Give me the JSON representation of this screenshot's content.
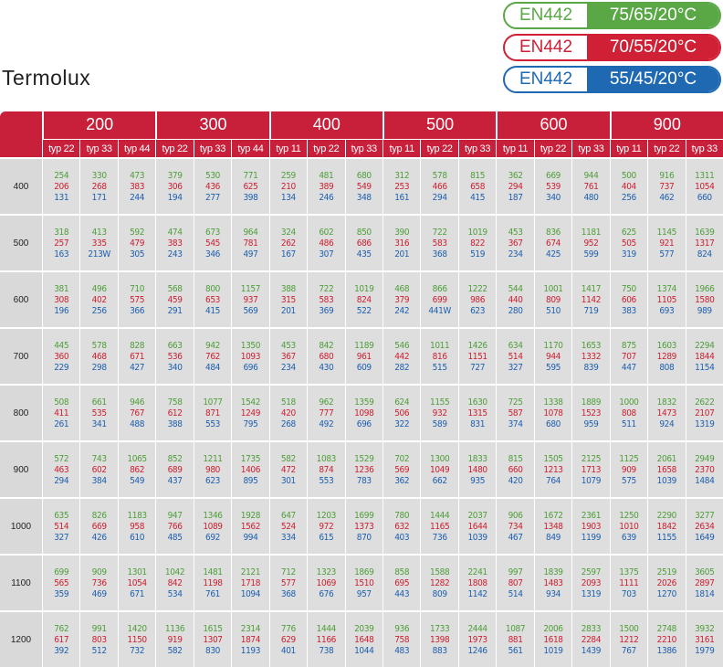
{
  "header": {
    "title": "Termolux"
  },
  "legend": [
    {
      "standard": "EN442",
      "temps": "75/65/20°C"
    },
    {
      "standard": "EN442",
      "temps": "70/55/20°C"
    },
    {
      "standard": "EN442",
      "temps": "55/45/20°C"
    }
  ],
  "table": {
    "groups": [
      {
        "label": "200",
        "types": [
          "typ 22",
          "typ 33",
          "typ 44"
        ]
      },
      {
        "label": "300",
        "types": [
          "typ 22",
          "typ 33",
          "typ 44"
        ]
      },
      {
        "label": "400",
        "types": [
          "typ 11",
          "typ 22",
          "typ 33"
        ]
      },
      {
        "label": "500",
        "types": [
          "typ 11",
          "typ 22",
          "typ 33"
        ]
      },
      {
        "label": "600",
        "types": [
          "typ 11",
          "typ 22",
          "typ 33"
        ]
      },
      {
        "label": "900",
        "types": [
          "typ 11",
          "typ 22",
          "typ 33"
        ]
      }
    ],
    "rows": [
      {
        "height": "400",
        "cells": [
          [
            254,
            206,
            131
          ],
          [
            330,
            268,
            171
          ],
          [
            473,
            383,
            244
          ],
          [
            379,
            306,
            194
          ],
          [
            530,
            436,
            277
          ],
          [
            771,
            625,
            398
          ],
          [
            259,
            210,
            134
          ],
          [
            481,
            389,
            246
          ],
          [
            680,
            549,
            348
          ],
          [
            312,
            253,
            161
          ],
          [
            578,
            466,
            294
          ],
          [
            815,
            658,
            415
          ],
          [
            362,
            294,
            187
          ],
          [
            669,
            539,
            340
          ],
          [
            944,
            761,
            480
          ],
          [
            500,
            404,
            256
          ],
          [
            916,
            737,
            462
          ],
          [
            1311,
            1054,
            660
          ]
        ]
      },
      {
        "height": "500",
        "cells": [
          [
            318,
            257,
            163
          ],
          [
            413,
            335,
            "213W"
          ],
          [
            592,
            479,
            305
          ],
          [
            474,
            383,
            243
          ],
          [
            673,
            545,
            346
          ],
          [
            964,
            781,
            497
          ],
          [
            324,
            262,
            167
          ],
          [
            602,
            486,
            307
          ],
          [
            850,
            686,
            435
          ],
          [
            390,
            316,
            201
          ],
          [
            722,
            583,
            368
          ],
          [
            1019,
            822,
            519
          ],
          [
            453,
            367,
            234
          ],
          [
            836,
            674,
            425
          ],
          [
            1181,
            952,
            599
          ],
          [
            625,
            505,
            319
          ],
          [
            1145,
            921,
            577
          ],
          [
            1639,
            1317,
            824
          ]
        ]
      },
      {
        "height": "600",
        "cells": [
          [
            381,
            308,
            196
          ],
          [
            496,
            402,
            256
          ],
          [
            710,
            575,
            366
          ],
          [
            568,
            459,
            291
          ],
          [
            800,
            653,
            415
          ],
          [
            1157,
            937,
            569
          ],
          [
            388,
            315,
            201
          ],
          [
            722,
            583,
            369
          ],
          [
            1019,
            824,
            522
          ],
          [
            468,
            379,
            242
          ],
          [
            866,
            699,
            "441W"
          ],
          [
            1222,
            986,
            623
          ],
          [
            544,
            440,
            280
          ],
          [
            1001,
            809,
            510
          ],
          [
            1417,
            1142,
            719
          ],
          [
            750,
            606,
            383
          ],
          [
            1374,
            1105,
            693
          ],
          [
            1966,
            1580,
            989
          ]
        ]
      },
      {
        "height": "700",
        "cells": [
          [
            445,
            360,
            229
          ],
          [
            578,
            468,
            298
          ],
          [
            828,
            671,
            427
          ],
          [
            663,
            536,
            340
          ],
          [
            942,
            762,
            484
          ],
          [
            1350,
            1093,
            696
          ],
          [
            453,
            367,
            234
          ],
          [
            842,
            680,
            430
          ],
          [
            1189,
            961,
            609
          ],
          [
            546,
            442,
            282
          ],
          [
            1011,
            816,
            515
          ],
          [
            1426,
            1151,
            727
          ],
          [
            634,
            514,
            327
          ],
          [
            1170,
            944,
            595
          ],
          [
            1653,
            1332,
            839
          ],
          [
            875,
            707,
            447
          ],
          [
            1603,
            1289,
            808
          ],
          [
            2294,
            1844,
            1154
          ]
        ]
      },
      {
        "height": "800",
        "cells": [
          [
            508,
            411,
            261
          ],
          [
            661,
            535,
            341
          ],
          [
            946,
            767,
            488
          ],
          [
            758,
            612,
            388
          ],
          [
            1077,
            871,
            553
          ],
          [
            1542,
            1249,
            795
          ],
          [
            518,
            420,
            268
          ],
          [
            962,
            777,
            492
          ],
          [
            1359,
            1098,
            696
          ],
          [
            624,
            506,
            322
          ],
          [
            1155,
            932,
            589
          ],
          [
            1630,
            1315,
            831
          ],
          [
            725,
            587,
            374
          ],
          [
            1338,
            1078,
            680
          ],
          [
            1889,
            1523,
            959
          ],
          [
            1000,
            808,
            511
          ],
          [
            1832,
            1473,
            924
          ],
          [
            2622,
            2107,
            1319
          ]
        ]
      },
      {
        "height": "900",
        "cells": [
          [
            572,
            463,
            294
          ],
          [
            743,
            602,
            384
          ],
          [
            1065,
            862,
            549
          ],
          [
            852,
            689,
            437
          ],
          [
            1211,
            980,
            623
          ],
          [
            1735,
            1406,
            895
          ],
          [
            582,
            472,
            301
          ],
          [
            1083,
            874,
            553
          ],
          [
            1529,
            1236,
            783
          ],
          [
            702,
            569,
            362
          ],
          [
            1300,
            1049,
            662
          ],
          [
            1833,
            1480,
            935
          ],
          [
            815,
            660,
            420
          ],
          [
            1505,
            1213,
            764
          ],
          [
            2125,
            1713,
            1079
          ],
          [
            1125,
            909,
            575
          ],
          [
            2061,
            1658,
            1039
          ],
          [
            2949,
            2370,
            1484
          ]
        ]
      },
      {
        "height": "1000",
        "cells": [
          [
            635,
            514,
            327
          ],
          [
            826,
            669,
            426
          ],
          [
            1183,
            958,
            610
          ],
          [
            947,
            766,
            485
          ],
          [
            1346,
            1089,
            692
          ],
          [
            1928,
            1562,
            994
          ],
          [
            647,
            524,
            334
          ],
          [
            1203,
            972,
            615
          ],
          [
            1699,
            1373,
            870
          ],
          [
            780,
            632,
            403
          ],
          [
            1444,
            1165,
            736
          ],
          [
            2037,
            1644,
            1039
          ],
          [
            906,
            734,
            467
          ],
          [
            1672,
            1348,
            849
          ],
          [
            2361,
            1903,
            1199
          ],
          [
            1250,
            1010,
            639
          ],
          [
            2290,
            1842,
            1155
          ],
          [
            3277,
            2634,
            1649
          ]
        ]
      },
      {
        "height": "1100",
        "cells": [
          [
            699,
            565,
            359
          ],
          [
            909,
            736,
            469
          ],
          [
            1301,
            1054,
            671
          ],
          [
            1042,
            842,
            534
          ],
          [
            1481,
            1198,
            761
          ],
          [
            2121,
            1718,
            1094
          ],
          [
            712,
            577,
            368
          ],
          [
            1323,
            1069,
            676
          ],
          [
            1869,
            1510,
            957
          ],
          [
            858,
            695,
            443
          ],
          [
            1588,
            1282,
            809
          ],
          [
            2241,
            1808,
            1142
          ],
          [
            997,
            807,
            514
          ],
          [
            1839,
            1483,
            934
          ],
          [
            2597,
            2093,
            1319
          ],
          [
            1375,
            1111,
            703
          ],
          [
            2519,
            2026,
            1270
          ],
          [
            3605,
            2897,
            1814
          ]
        ]
      },
      {
        "height": "1200",
        "cells": [
          [
            762,
            617,
            392
          ],
          [
            991,
            803,
            512
          ],
          [
            1420,
            1150,
            732
          ],
          [
            1136,
            919,
            582
          ],
          [
            1615,
            1307,
            830
          ],
          [
            2314,
            1874,
            1193
          ],
          [
            776,
            629,
            401
          ],
          [
            1444,
            1166,
            738
          ],
          [
            2039,
            1648,
            1044
          ],
          [
            936,
            758,
            483
          ],
          [
            1733,
            1398,
            883
          ],
          [
            2444,
            1973,
            1246
          ],
          [
            1087,
            881,
            561
          ],
          [
            2006,
            1618,
            1019
          ],
          [
            2833,
            2284,
            1439
          ],
          [
            1500,
            1212,
            767
          ],
          [
            2748,
            2210,
            1386
          ],
          [
            3932,
            3161,
            1979
          ]
        ]
      }
    ]
  }
}
